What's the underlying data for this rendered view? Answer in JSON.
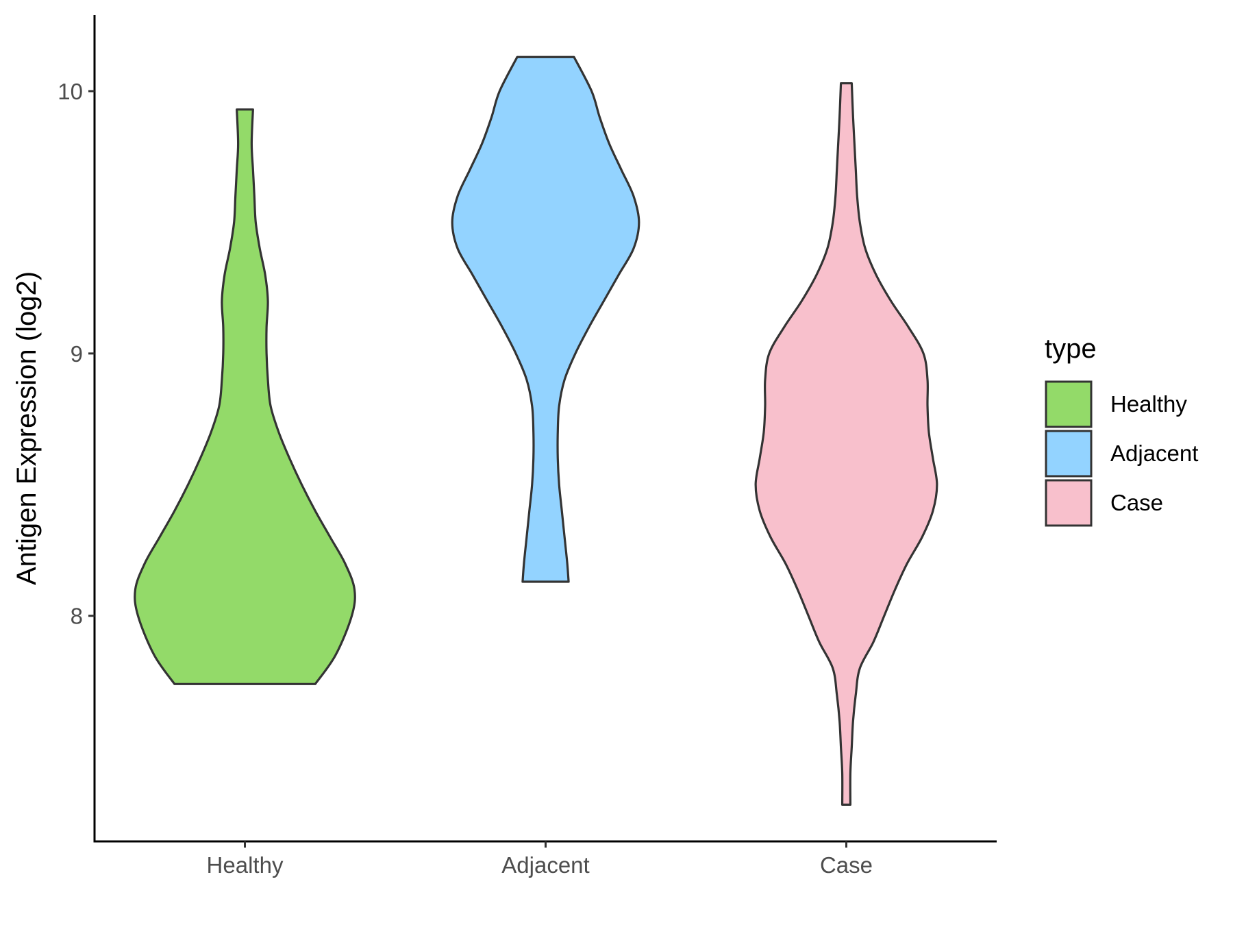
{
  "chart_data": {
    "type": "violin",
    "title": "",
    "xlabel": "",
    "ylabel": "Antigen Expression (log2)",
    "categories": [
      "Healthy",
      "Adjacent",
      "Case"
    ],
    "y_ticks": [
      8,
      9,
      10
    ],
    "ylim": [
      7.14,
      10.29
    ],
    "grid": false,
    "legend": {
      "title": "type",
      "position": "right",
      "entries": [
        {
          "label": "Healthy",
          "color": "#93DA69"
        },
        {
          "label": "Adjacent",
          "color": "#93D3FF"
        },
        {
          "label": "Case",
          "color": "#F8C0CC"
        }
      ]
    },
    "series": [
      {
        "category": "Healthy",
        "color": "#93DA69",
        "min": 7.74,
        "max": 9.93,
        "profile": [
          [
            7.74,
            0.52
          ],
          [
            7.85,
            0.67
          ],
          [
            8.0,
            0.79
          ],
          [
            8.1,
            0.81
          ],
          [
            8.2,
            0.74
          ],
          [
            8.3,
            0.63
          ],
          [
            8.4,
            0.52
          ],
          [
            8.5,
            0.42
          ],
          [
            8.6,
            0.33
          ],
          [
            8.7,
            0.25
          ],
          [
            8.8,
            0.19
          ],
          [
            8.9,
            0.17
          ],
          [
            9.0,
            0.16
          ],
          [
            9.1,
            0.16
          ],
          [
            9.2,
            0.17
          ],
          [
            9.3,
            0.15
          ],
          [
            9.4,
            0.11
          ],
          [
            9.5,
            0.08
          ],
          [
            9.6,
            0.07
          ],
          [
            9.7,
            0.06
          ],
          [
            9.8,
            0.05
          ],
          [
            9.93,
            0.06
          ]
        ]
      },
      {
        "category": "Adjacent",
        "color": "#93D3FF",
        "min": 8.13,
        "max": 10.13,
        "profile": [
          [
            8.13,
            0.17
          ],
          [
            8.2,
            0.16
          ],
          [
            8.3,
            0.14
          ],
          [
            8.4,
            0.12
          ],
          [
            8.5,
            0.1
          ],
          [
            8.6,
            0.09
          ],
          [
            8.7,
            0.09
          ],
          [
            8.8,
            0.1
          ],
          [
            8.9,
            0.14
          ],
          [
            9.0,
            0.22
          ],
          [
            9.1,
            0.32
          ],
          [
            9.2,
            0.43
          ],
          [
            9.3,
            0.54
          ],
          [
            9.4,
            0.65
          ],
          [
            9.5,
            0.69
          ],
          [
            9.6,
            0.65
          ],
          [
            9.7,
            0.56
          ],
          [
            9.8,
            0.47
          ],
          [
            9.9,
            0.4
          ],
          [
            10.0,
            0.34
          ],
          [
            10.13,
            0.21
          ]
        ]
      },
      {
        "category": "Case",
        "color": "#F8C0CC",
        "min": 7.28,
        "max": 10.03,
        "profile": [
          [
            7.28,
            0.03
          ],
          [
            7.4,
            0.03
          ],
          [
            7.5,
            0.04
          ],
          [
            7.6,
            0.05
          ],
          [
            7.7,
            0.07
          ],
          [
            7.8,
            0.1
          ],
          [
            7.9,
            0.2
          ],
          [
            8.0,
            0.28
          ],
          [
            8.1,
            0.36
          ],
          [
            8.2,
            0.45
          ],
          [
            8.3,
            0.56
          ],
          [
            8.4,
            0.64
          ],
          [
            8.5,
            0.67
          ],
          [
            8.6,
            0.64
          ],
          [
            8.7,
            0.61
          ],
          [
            8.8,
            0.6
          ],
          [
            8.9,
            0.6
          ],
          [
            9.0,
            0.57
          ],
          [
            9.1,
            0.46
          ],
          [
            9.2,
            0.33
          ],
          [
            9.3,
            0.22
          ],
          [
            9.4,
            0.14
          ],
          [
            9.5,
            0.1
          ],
          [
            9.6,
            0.08
          ],
          [
            9.7,
            0.07
          ],
          [
            9.8,
            0.06
          ],
          [
            9.9,
            0.05
          ],
          [
            10.03,
            0.04
          ]
        ]
      }
    ]
  }
}
